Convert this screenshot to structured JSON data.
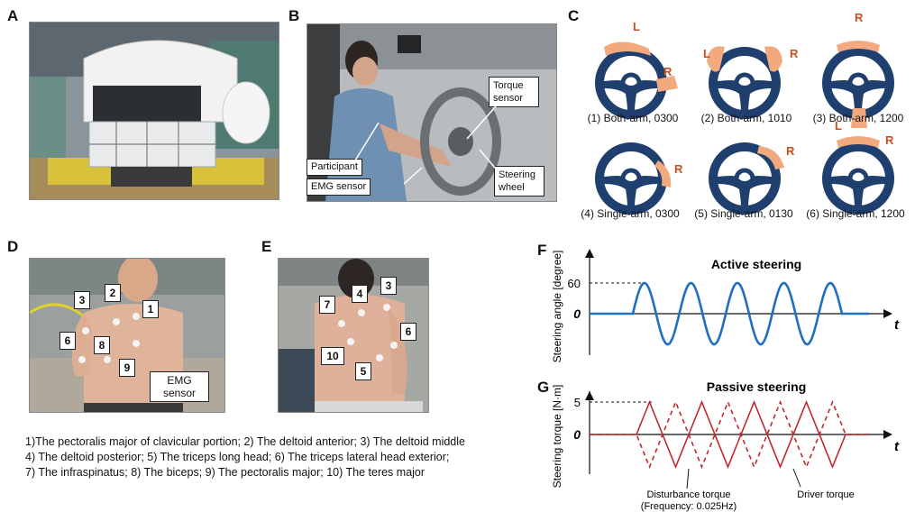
{
  "panels": {
    "A": "A",
    "B": "B",
    "C": "C",
    "D": "D",
    "E": "E",
    "F": "F",
    "G": "G"
  },
  "panel_b": {
    "labels": [
      "Torque sensor",
      "Participant",
      "EMG sensor",
      "Steering wheel"
    ]
  },
  "panel_c": {
    "captions": [
      "(1) Both-arm, 0300",
      "(2) Both-arm, 1010",
      "(3) Both-arm, 1200",
      "(4) Single-arm, 0300",
      "(5) Single-arm, 0130",
      "(6) Single-arm, 1200"
    ],
    "hand_labels": {
      "L": "L",
      "R": "R"
    },
    "colors": {
      "wheel": "#1f3f6e",
      "hand": "#f2a97e",
      "label": "#c8501e"
    }
  },
  "panel_d": {
    "numbers": [
      "1",
      "2",
      "3",
      "6",
      "8",
      "9"
    ],
    "emg_label": "EMG sensor"
  },
  "panel_e": {
    "numbers": [
      "7",
      "4",
      "3",
      "6",
      "10",
      "5"
    ]
  },
  "muscle_legend": [
    "1)The pectoralis major of clavicular portion; 2) The deltoid anterior; 3) The deltoid middle",
    "4) The deltoid posterior; 5) The triceps long head; 6) The triceps lateral head exterior;",
    "7) The infraspinatus; 8) The biceps; 9) The pectoralis major; 10) The teres major"
  ],
  "chart_data": [
    {
      "type": "line",
      "title": "Active steering",
      "ylabel": "Steering angle [degree]",
      "xlabel": "t",
      "y_ticks": [
        "60",
        "0"
      ],
      "amplitude": 60,
      "cycles": 4.5,
      "color": "#1f6fc1"
    },
    {
      "type": "line",
      "title": "Passive steering",
      "ylabel": "Steering torque [N·m]",
      "xlabel": "t",
      "y_ticks": [
        "5",
        "0"
      ],
      "amplitude": 5,
      "cycles": 4,
      "frequency_label": "(Frequency: 0.025Hz)",
      "series": [
        {
          "name": "Disturbance torque",
          "style": "solid"
        },
        {
          "name": "Driver torque",
          "style": "dashed"
        }
      ],
      "color": "#c0282d"
    }
  ]
}
